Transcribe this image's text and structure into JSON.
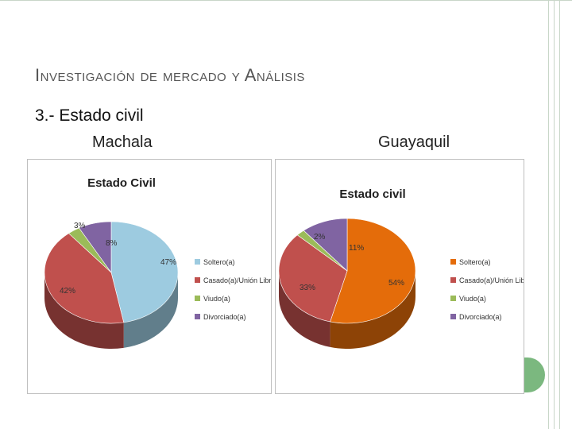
{
  "slide": {
    "title": "Investigación  de mercado y Análisis",
    "section": "3.- Estado civil",
    "left_city": "Machala",
    "right_city": "Guayaquil"
  },
  "chart_data": [
    {
      "type": "pie",
      "title": "Estado Civil",
      "categories": [
        "Soltero(a)",
        "Casado(a)/Unión Libre",
        "Viudo(a)",
        "Divorciado(a)"
      ],
      "values": [
        47,
        42,
        3,
        8
      ],
      "labels": [
        "47%",
        "42%",
        "3%",
        "8%"
      ],
      "colors": [
        "#9dcbe0",
        "#c0504d",
        "#9bbb59",
        "#8064a2"
      ],
      "legend": "right"
    },
    {
      "type": "pie",
      "title": "Estado civil",
      "categories": [
        "Soltero(a)",
        "Casado(a)/Unión Libre",
        "Viudo(a)",
        "Divorciado(a)"
      ],
      "values": [
        54,
        33,
        2,
        11
      ],
      "labels": [
        "54%",
        "33%",
        "2%",
        "11%"
      ],
      "colors": [
        "#e46c0a",
        "#c0504d",
        "#9bbb59",
        "#8064a2"
      ],
      "legend": "right"
    }
  ]
}
